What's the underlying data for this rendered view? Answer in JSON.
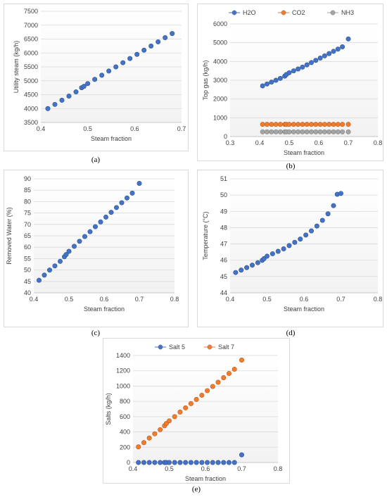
{
  "chart_data": [
    {
      "type": "scatter",
      "label": "(a)",
      "xlabel": "Steam fraction",
      "ylabel": "Utility steam (kg/h)",
      "xlim": [
        0.4,
        0.7
      ],
      "ylim": [
        3500,
        7500
      ],
      "xticks": [
        "0.4",
        "0.5",
        "0.6",
        "0.7"
      ],
      "yticks": [
        "3500",
        "4000",
        "4500",
        "5000",
        "5500",
        "6000",
        "6500",
        "7000",
        "7500"
      ],
      "grid": true,
      "series": [
        {
          "color": "#4472c4",
          "x": [
            0.415,
            0.43,
            0.445,
            0.46,
            0.475,
            0.487,
            0.492,
            0.5,
            0.515,
            0.53,
            0.545,
            0.56,
            0.575,
            0.59,
            0.605,
            0.62,
            0.635,
            0.65,
            0.665,
            0.68
          ],
          "y": [
            4000,
            4150,
            4300,
            4450,
            4600,
            4750,
            4800,
            4900,
            5050,
            5200,
            5350,
            5500,
            5650,
            5800,
            5950,
            6100,
            6250,
            6400,
            6550,
            6700
          ]
        }
      ]
    },
    {
      "type": "scatter",
      "label": "(b)",
      "xlabel": "Steam fraction",
      "ylabel": "Top gas (kg/h)",
      "xlim": [
        0.3,
        0.8
      ],
      "ylim": [
        0,
        6000
      ],
      "xticks": [
        "0.3",
        "0.4",
        "0.5",
        "0.6",
        "0.7",
        "0.8"
      ],
      "yticks": [
        "0",
        "1000",
        "2000",
        "3000",
        "4000",
        "5000",
        "6000"
      ],
      "grid": true,
      "legend": "top",
      "series": [
        {
          "name": "H2O",
          "color": "#4472c4",
          "x": [
            0.41,
            0.425,
            0.44,
            0.455,
            0.47,
            0.485,
            0.49,
            0.5,
            0.515,
            0.53,
            0.545,
            0.56,
            0.575,
            0.59,
            0.605,
            0.62,
            0.635,
            0.65,
            0.665,
            0.68,
            0.7
          ],
          "y": [
            2700,
            2800,
            2900,
            3000,
            3100,
            3220,
            3300,
            3400,
            3500,
            3600,
            3700,
            3820,
            3940,
            4060,
            4180,
            4300,
            4420,
            4540,
            4660,
            4780,
            5200
          ]
        },
        {
          "name": "CO2",
          "color": "#ed7d31",
          "x": [
            0.41,
            0.425,
            0.44,
            0.455,
            0.47,
            0.485,
            0.49,
            0.5,
            0.515,
            0.53,
            0.545,
            0.56,
            0.575,
            0.59,
            0.605,
            0.62,
            0.635,
            0.65,
            0.665,
            0.68,
            0.7
          ],
          "y": [
            650,
            650,
            650,
            650,
            650,
            650,
            650,
            650,
            650,
            650,
            650,
            650,
            650,
            650,
            650,
            650,
            650,
            650,
            650,
            650,
            650
          ]
        },
        {
          "name": "NH3",
          "color": "#a5a5a5",
          "x": [
            0.41,
            0.425,
            0.44,
            0.455,
            0.47,
            0.485,
            0.49,
            0.5,
            0.515,
            0.53,
            0.545,
            0.56,
            0.575,
            0.59,
            0.605,
            0.62,
            0.635,
            0.65,
            0.665,
            0.68,
            0.7
          ],
          "y": [
            250,
            250,
            250,
            250,
            250,
            250,
            250,
            250,
            250,
            250,
            250,
            250,
            250,
            250,
            250,
            250,
            250,
            250,
            250,
            250,
            250
          ]
        }
      ]
    },
    {
      "type": "scatter",
      "label": "(c)",
      "xlabel": "Steam fraction",
      "ylabel": "Removed Water (%)",
      "xlim": [
        0.4,
        0.8
      ],
      "ylim": [
        40,
        90
      ],
      "xticks": [
        "0.4",
        "0.5",
        "0.6",
        "0.7",
        "0.8"
      ],
      "yticks": [
        "40",
        "45",
        "50",
        "55",
        "60",
        "65",
        "70",
        "75",
        "80",
        "85",
        "90"
      ],
      "grid": true,
      "series": [
        {
          "color": "#4472c4",
          "x": [
            0.415,
            0.43,
            0.445,
            0.46,
            0.475,
            0.487,
            0.492,
            0.5,
            0.515,
            0.53,
            0.545,
            0.56,
            0.575,
            0.59,
            0.605,
            0.62,
            0.635,
            0.65,
            0.665,
            0.68,
            0.7
          ],
          "y": [
            45.5,
            47.8,
            50.0,
            51.8,
            53.8,
            55.8,
            56.8,
            58.2,
            60.4,
            62.6,
            64.7,
            66.8,
            69.0,
            71.1,
            73.2,
            75.3,
            77.4,
            79.5,
            81.6,
            83.7,
            88.0
          ]
        }
      ]
    },
    {
      "type": "scatter",
      "label": "(d)",
      "xlabel": "Steam fraction",
      "ylabel": "Temperature (°C)",
      "xlim": [
        0.4,
        0.8
      ],
      "ylim": [
        44,
        51
      ],
      "xticks": [
        "0.4",
        "0.5",
        "0.6",
        "0.7",
        "0.8"
      ],
      "yticks": [
        "44",
        "45",
        "46",
        "47",
        "48",
        "49",
        "50",
        "51"
      ],
      "grid": true,
      "series": [
        {
          "color": "#4472c4",
          "x": [
            0.415,
            0.43,
            0.445,
            0.46,
            0.475,
            0.487,
            0.492,
            0.5,
            0.515,
            0.53,
            0.545,
            0.56,
            0.575,
            0.59,
            0.605,
            0.62,
            0.635,
            0.65,
            0.665,
            0.68,
            0.69,
            0.7
          ],
          "y": [
            45.25,
            45.4,
            45.55,
            45.7,
            45.85,
            46.0,
            46.1,
            46.25,
            46.4,
            46.55,
            46.7,
            46.9,
            47.1,
            47.3,
            47.55,
            47.8,
            48.1,
            48.45,
            48.85,
            49.35,
            50.05,
            50.1
          ]
        }
      ]
    },
    {
      "type": "scatter",
      "label": "(e)",
      "xlabel": "Steam fraction",
      "ylabel": "Salts (kg/h)",
      "xlim": [
        0.4,
        0.8
      ],
      "ylim": [
        0,
        1400
      ],
      "xticks": [
        "0.4",
        "0.5",
        "0.6",
        "0.7",
        "0.8"
      ],
      "yticks": [
        "0",
        "200",
        "400",
        "600",
        "800",
        "1000",
        "1200",
        "1400"
      ],
      "grid": true,
      "legend": "top",
      "series": [
        {
          "name": "Salt 5",
          "color": "#4472c4",
          "x": [
            0.415,
            0.43,
            0.445,
            0.46,
            0.475,
            0.487,
            0.492,
            0.5,
            0.515,
            0.53,
            0.545,
            0.56,
            0.575,
            0.59,
            0.605,
            0.62,
            0.635,
            0.65,
            0.665,
            0.68,
            0.7
          ],
          "y": [
            0,
            0,
            0,
            0,
            0,
            0,
            0,
            0,
            0,
            0,
            0,
            0,
            0,
            0,
            0,
            0,
            0,
            0,
            0,
            0,
            100
          ]
        },
        {
          "name": "Salt 7",
          "color": "#ed7d31",
          "x": [
            0.415,
            0.43,
            0.445,
            0.46,
            0.475,
            0.487,
            0.492,
            0.5,
            0.515,
            0.53,
            0.545,
            0.56,
            0.575,
            0.59,
            0.605,
            0.62,
            0.635,
            0.65,
            0.665,
            0.68,
            0.7
          ],
          "y": [
            205,
            260,
            320,
            375,
            430,
            480,
            510,
            545,
            600,
            660,
            715,
            770,
            825,
            880,
            940,
            995,
            1050,
            1110,
            1165,
            1220,
            1340
          ]
        }
      ]
    }
  ]
}
